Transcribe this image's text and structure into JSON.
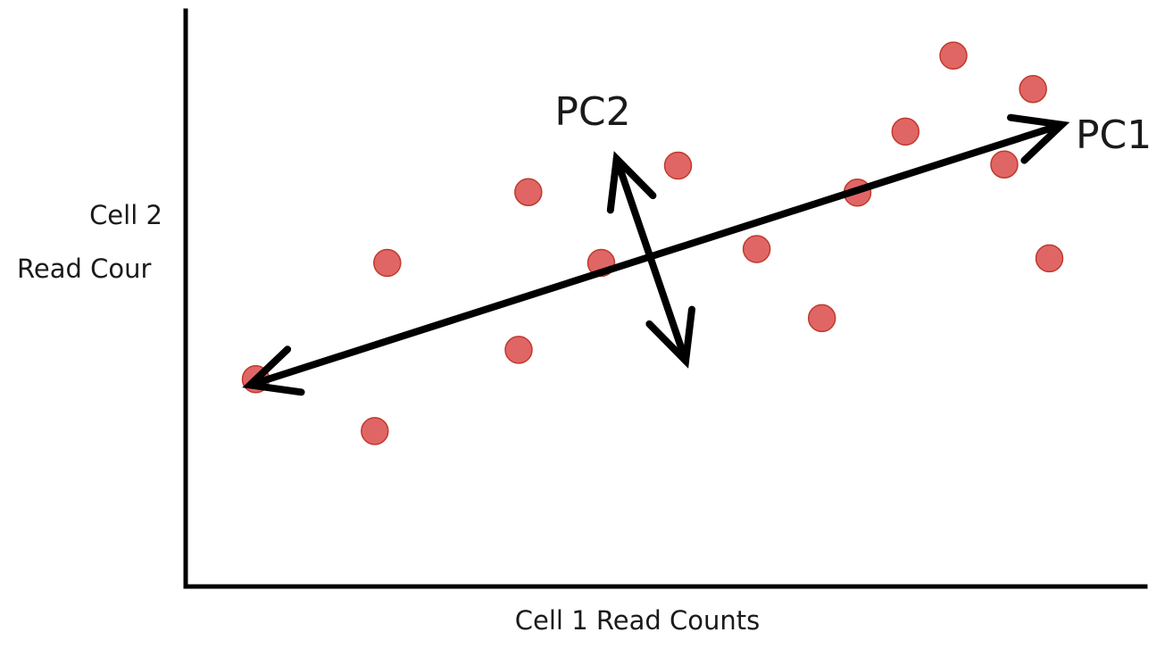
{
  "labels": {
    "x_axis": "Cell 1 Read Counts",
    "y_axis_line1": "Cell 2",
    "y_axis_line2": "Read Cour",
    "pc1": "PC1",
    "pc2": "PC2"
  },
  "colors": {
    "point_fill": "#e06666",
    "point_stroke": "#c0392b",
    "axis": "#000000",
    "arrow": "#000000"
  },
  "chart_data": {
    "type": "scatter",
    "title": "",
    "xlabel": "Cell 1 Read Counts",
    "ylabel": "Cell 2 Read Cour",
    "xlim": [
      0,
      100
    ],
    "ylim": [
      0,
      100
    ],
    "grid": false,
    "series": [
      {
        "x": [
          7.3,
          19.7,
          21.0,
          34.7,
          35.7,
          43.3,
          51.3,
          59.5,
          66.3,
          70.0,
          75.0,
          80.0,
          85.3,
          88.3,
          90.0
        ],
        "y": [
          36.0,
          27.0,
          56.2,
          41.1,
          68.5,
          56.2,
          73.1,
          58.6,
          46.6,
          68.4,
          79.0,
          92.2,
          73.3,
          86.4,
          57.0
        ]
      }
    ],
    "pc1_axis": {
      "from": [
        6.7,
        35.0
      ],
      "to": [
        91.3,
        80.2
      ]
    },
    "pc2_axis": {
      "from": [
        44.9,
        74.3
      ],
      "to": [
        52.1,
        39.2
      ]
    }
  }
}
